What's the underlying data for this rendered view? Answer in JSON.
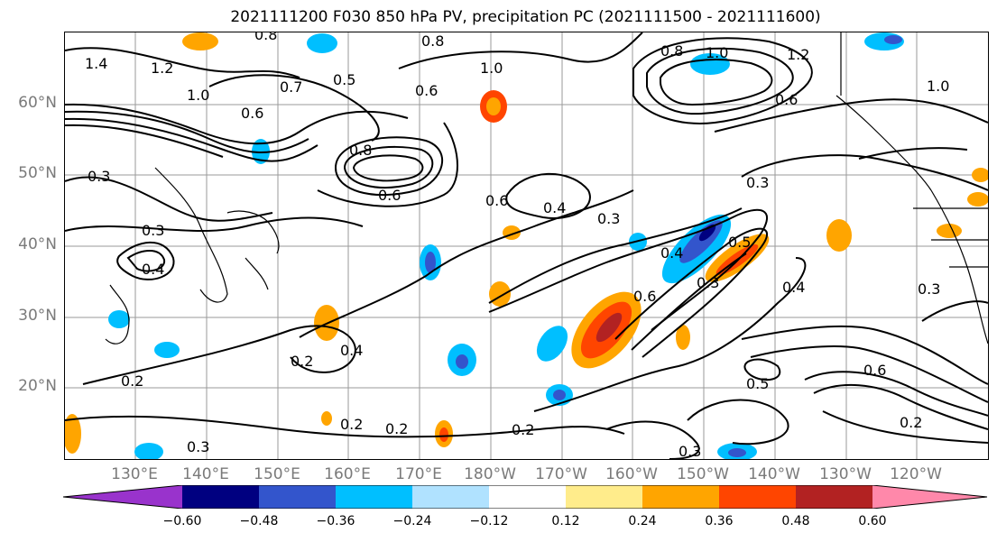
{
  "title": "2021111200 F030 850 hPa PV, precipitation PC (2021111500 - 2021111600)",
  "lat_labels": [
    "60°N",
    "50°N",
    "40°N",
    "30°N",
    "20°N"
  ],
  "lon_labels": [
    "130°E",
    "140°E",
    "150°E",
    "160°E",
    "170°E",
    "180°W",
    "170°W",
    "160°W",
    "150°W",
    "140°W",
    "130°W",
    "120°W"
  ],
  "contour_labels": [
    "0.8",
    "0.8",
    "1.0",
    "1.2",
    "1.4",
    "1.0",
    "0.7",
    "0.5",
    "0.6",
    "0.6",
    "0.8",
    "1.0",
    "1.2",
    "1.0",
    "0.6",
    "0.8",
    "0.6",
    "0.3",
    "0.3",
    "0.4",
    "0.3",
    "0.6",
    "0.4",
    "0.3",
    "0.4",
    "0.6",
    "0.3",
    "0.5",
    "0.4",
    "0.4",
    "0.2",
    "0.2",
    "0.2",
    "0.2",
    "0.2",
    "0.5",
    "0.6",
    "0.3",
    "0.3",
    "0.2",
    "0.3"
  ],
  "colorbar": {
    "ticks": [
      "−0.60",
      "−0.48",
      "−0.36",
      "−0.24",
      "−0.12",
      "0.12",
      "0.24",
      "0.36",
      "0.48",
      "0.60"
    ],
    "colors": [
      "#9933cc",
      "#000080",
      "#3355cc",
      "#00bfff",
      "#b0e2ff",
      "#ffffff",
      "#ffec8b",
      "#ffa500",
      "#ff4500",
      "#b22222",
      "#ff88aa"
    ]
  }
}
